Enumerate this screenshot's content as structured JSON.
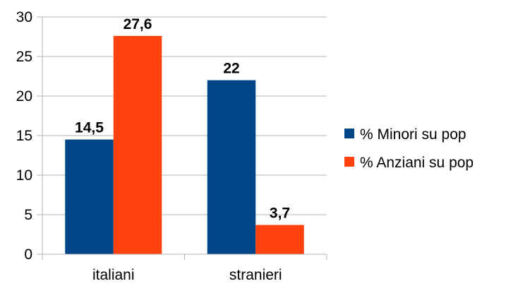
{
  "chart_data": {
    "type": "bar",
    "categories": [
      "italiani",
      "stranieri"
    ],
    "series": [
      {
        "name": "% Minori su pop",
        "color": "#004586",
        "values": [
          14.5,
          22
        ],
        "labels": [
          "14,5",
          "22"
        ]
      },
      {
        "name": "% Anziani su pop",
        "color": "#ff420e",
        "values": [
          27.6,
          3.7
        ],
        "labels": [
          "27,6",
          "3,7"
        ]
      }
    ],
    "ylim": [
      0,
      30
    ],
    "yticks": [
      0,
      5,
      10,
      15,
      20,
      25,
      30
    ],
    "grid": true,
    "legend": "right"
  }
}
